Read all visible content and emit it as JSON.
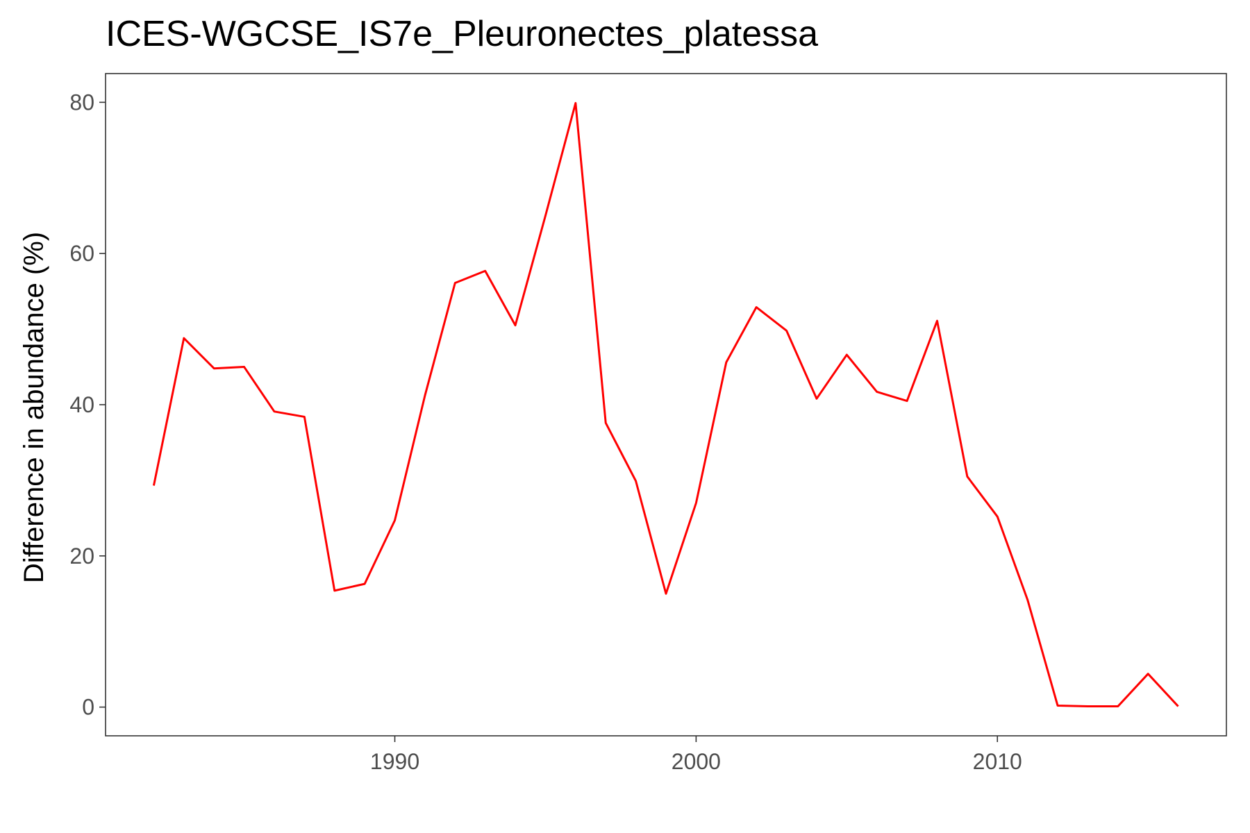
{
  "chart_data": {
    "type": "line",
    "title": "ICES-WGCSE_IS7e_Pleuronectes_platessa",
    "xlabel": "",
    "ylabel": "Difference in abundance (%)",
    "xlim": [
      1980.4,
      2017.6
    ],
    "ylim": [
      -3.8,
      83.8
    ],
    "x_ticks": [
      1990,
      2000,
      2010
    ],
    "y_ticks": [
      0,
      20,
      40,
      60,
      80
    ],
    "grid": false,
    "legend": "none",
    "line_color": "#ff0000",
    "x": [
      1982,
      1983,
      1984,
      1985,
      1986,
      1987,
      1988,
      1989,
      1990,
      1991,
      1992,
      1993,
      1994,
      1995,
      1996,
      1997,
      1998,
      1999,
      2000,
      2001,
      2002,
      2003,
      2004,
      2005,
      2006,
      2007,
      2008,
      2009,
      2010,
      2011,
      2012,
      2013,
      2014,
      2015,
      2016
    ],
    "values": [
      29.3,
      48.8,
      44.8,
      45.0,
      39.1,
      38.4,
      15.4,
      16.3,
      24.7,
      41.2,
      56.1,
      57.7,
      50.5,
      65.0,
      79.9,
      37.6,
      29.9,
      15.0,
      27.0,
      45.6,
      52.9,
      49.8,
      40.8,
      46.6,
      41.7,
      40.5,
      51.1,
      30.5,
      25.2,
      14.2,
      0.2,
      0.1,
      0.1,
      4.4,
      0.1
    ]
  }
}
